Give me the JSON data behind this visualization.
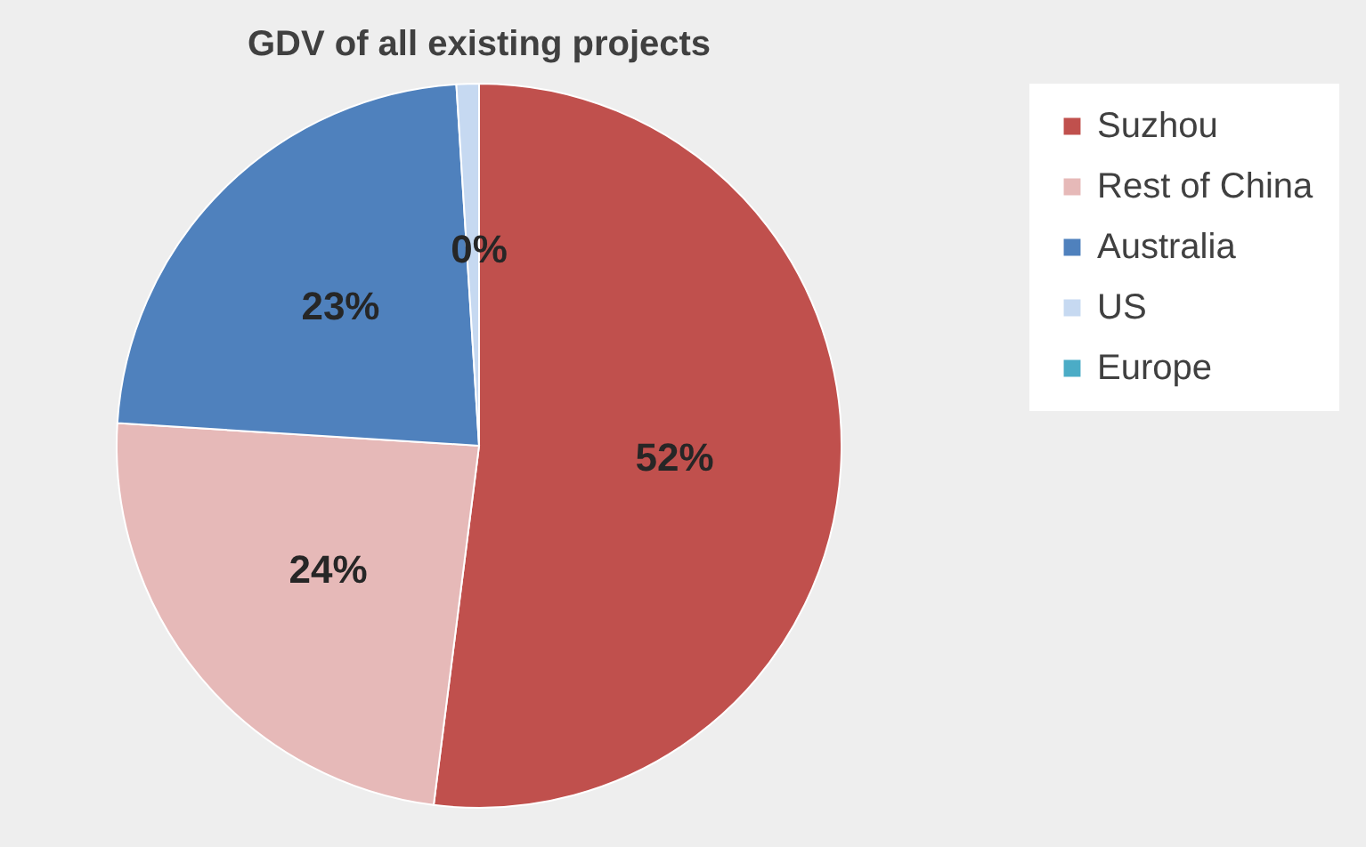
{
  "chart_data": {
    "type": "pie",
    "title": "GDV of all existing projects",
    "categories": [
      "Suzhou",
      "Rest of China",
      "Australia",
      "US",
      "Europe"
    ],
    "values": [
      52,
      24,
      23,
      1,
      0
    ],
    "colors": [
      "#c0504d",
      "#e6b9b8",
      "#4f81bd",
      "#c6d9f1",
      "#4bacc6"
    ],
    "value_labels": [
      "52%",
      "24%",
      "23%",
      null,
      "0%"
    ],
    "legend": "right"
  }
}
